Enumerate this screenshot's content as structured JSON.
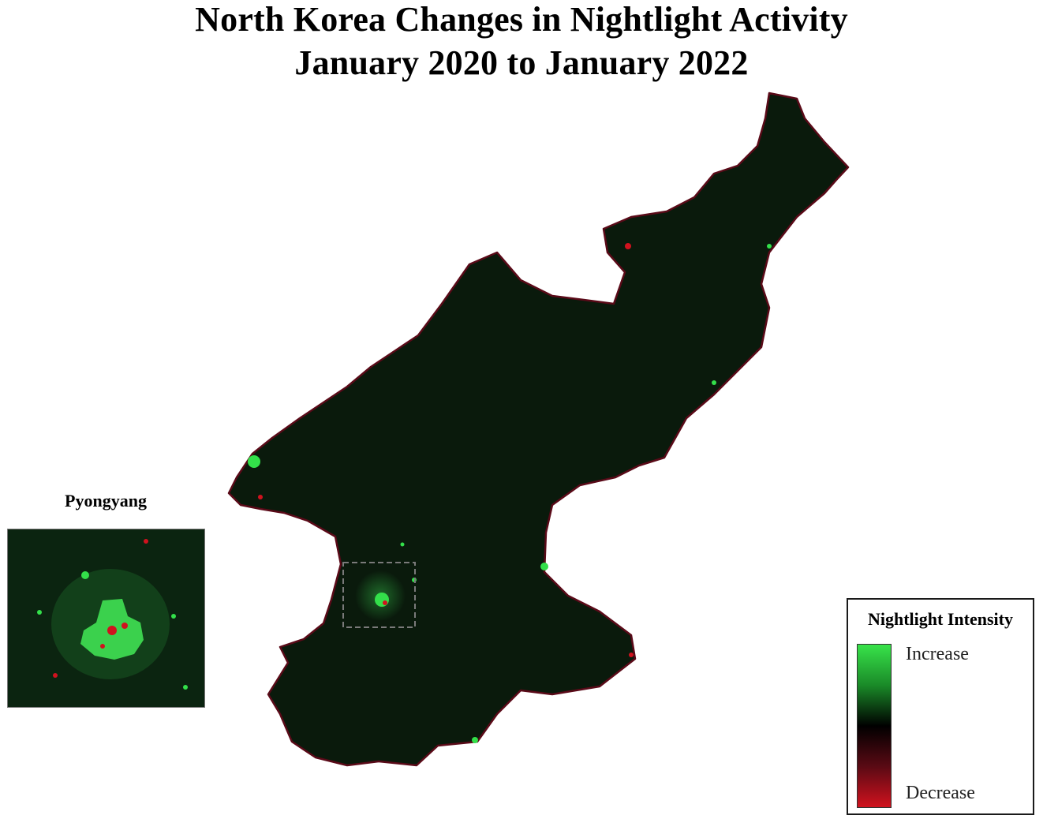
{
  "title": {
    "line1": "North Korea Changes in Nightlight Activity",
    "line2": "January 2020 to January 2022"
  },
  "inset": {
    "label": "Pyongyang"
  },
  "legend": {
    "title": "Nightlight Intensity",
    "high_label": "Increase",
    "low_label": "Decrease",
    "colors": {
      "increase": "#38e34a",
      "neutral": "#000000",
      "decrease": "#d0121e"
    }
  },
  "colors": {
    "land": "#0a1a0c",
    "increase": "#33e04a",
    "decrease": "#d0121e"
  }
}
